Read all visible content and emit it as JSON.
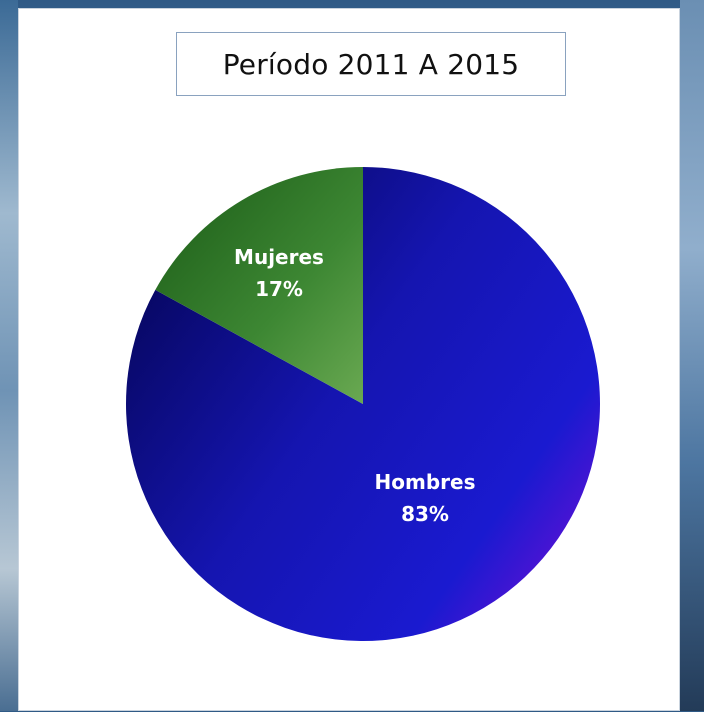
{
  "chart_data": {
    "type": "pie",
    "title": "Período 2011 A 2015",
    "slices": [
      {
        "label": "Hombres",
        "value": 83,
        "display": "83%",
        "color": "#1717b8"
      },
      {
        "label": "Mujeres",
        "value": 17,
        "display": "17%",
        "color": "#3f8a33"
      }
    ],
    "start_angle_deg": 0,
    "direction": "clockwise",
    "legend": "none",
    "label_position": "inside"
  },
  "colors": {
    "hombres_dark": "#050555",
    "hombres_mid": "#1515b0",
    "hombres_light": "#6a10d6",
    "mujeres_dark": "#1a5a16",
    "mujeres_light": "#6aa952",
    "title_border": "#8aa2bf"
  }
}
